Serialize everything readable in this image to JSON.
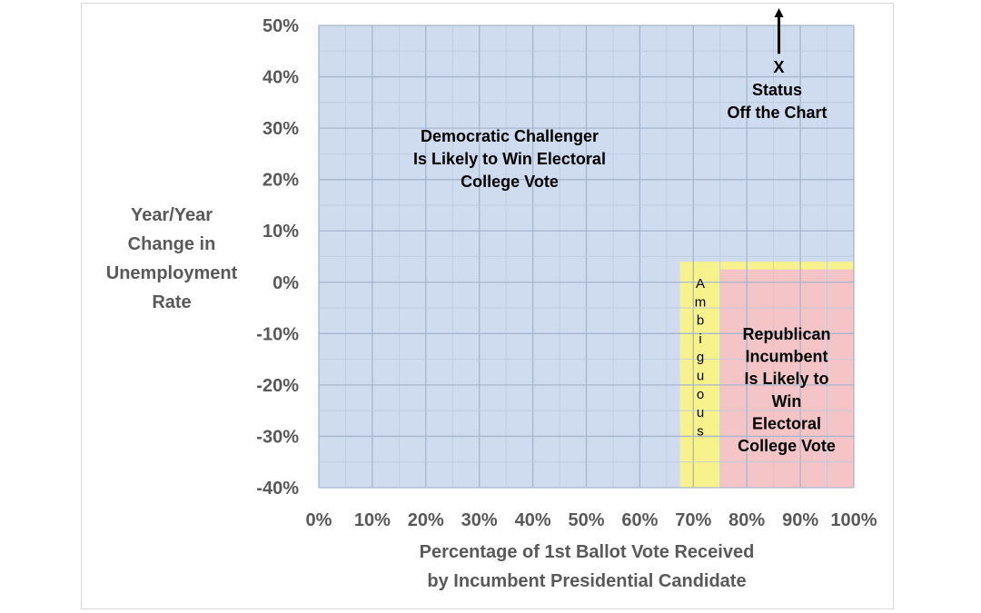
{
  "chart_data": {
    "type": "area",
    "title": "",
    "xlabel": [
      "Percentage of 1st Ballot Vote Received",
      "by Incumbent Presidential Candidate"
    ],
    "ylabel": [
      "Year/Year",
      "Change in",
      "Unemployment",
      "Rate"
    ],
    "xlim": [
      0,
      100
    ],
    "ylim": [
      -40,
      50
    ],
    "x_ticks": [
      "0%",
      "10%",
      "20%",
      "30%",
      "40%",
      "50%",
      "60%",
      "70%",
      "80%",
      "90%",
      "100%"
    ],
    "y_ticks": [
      "50%",
      "40%",
      "30%",
      "20%",
      "10%",
      "0%",
      "-10%",
      "-20%",
      "-30%",
      "-40%"
    ],
    "x_tick_values": [
      0,
      10,
      20,
      30,
      40,
      50,
      60,
      70,
      80,
      90,
      100
    ],
    "y_tick_values": [
      50,
      40,
      30,
      20,
      10,
      0,
      -10,
      -20,
      -30,
      -40
    ],
    "grid": true,
    "regions": [
      {
        "name": "democratic",
        "x": [
          0,
          100
        ],
        "y": [
          -40,
          50
        ],
        "color": "#cfdbee",
        "label": [
          "Democratic Challenger",
          "Is Likely to Win Electoral",
          "College Vote"
        ]
      },
      {
        "name": "ambiguous",
        "x": [
          67.5,
          100
        ],
        "y": [
          -40,
          4
        ],
        "color": "#f7f28c",
        "label": [
          "A",
          "m",
          "b",
          "i",
          "g",
          "u",
          "o",
          "u",
          "s"
        ]
      },
      {
        "name": "republican",
        "x": [
          75,
          100
        ],
        "y": [
          -40,
          2.5
        ],
        "color": "#f4c4c6",
        "label": [
          "Republican",
          "Incumbent",
          "Is Likely to",
          "Win",
          "Electoral",
          "College Vote"
        ]
      }
    ],
    "marker": {
      "x": 86,
      "y": 42,
      "symbol": "X",
      "label": [
        "Status",
        "Off the Chart"
      ]
    }
  }
}
